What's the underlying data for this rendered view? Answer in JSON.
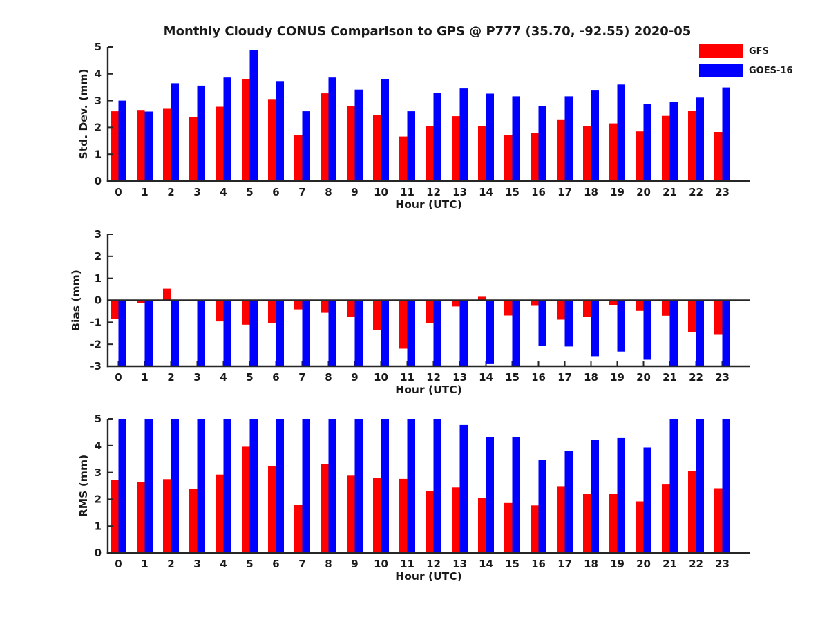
{
  "title": "Monthly Cloudy CONUS Comparison to GPS @ P777 (35.70, -92.55) 2020-05",
  "colors": {
    "gfs": "#ff0000",
    "goes16": "#0000ff",
    "axis": "#262626",
    "text": "#1a1a1a",
    "background": "#ffffff"
  },
  "legend": {
    "position": "top-right",
    "series": [
      {
        "label": "GFS",
        "color": "#ff0000"
      },
      {
        "label": "GOES-16",
        "color": "#0000ff"
      }
    ]
  },
  "chart_data": [
    {
      "type": "bar",
      "ylabel": "Std. Dev. (mm)",
      "xlabel": "Hour (UTC)",
      "ylim": [
        0,
        5
      ],
      "yticks": [
        0,
        1,
        2,
        3,
        4,
        5
      ],
      "grid": false,
      "categories": [
        "0",
        "1",
        "2",
        "3",
        "4",
        "5",
        "6",
        "7",
        "8",
        "9",
        "10",
        "11",
        "12",
        "13",
        "14",
        "15",
        "16",
        "17",
        "18",
        "19",
        "20",
        "21",
        "22",
        "23"
      ],
      "series": [
        {
          "name": "GFS",
          "color": "#ff0000",
          "values": [
            2.6,
            2.65,
            2.72,
            2.39,
            2.77,
            3.81,
            3.06,
            1.71,
            3.27,
            2.79,
            2.46,
            1.66,
            2.05,
            2.42,
            2.06,
            1.72,
            1.78,
            2.3,
            2.06,
            2.15,
            1.85,
            2.43,
            2.62,
            1.83
          ]
        },
        {
          "name": "GOES-16",
          "color": "#0000ff",
          "values": [
            3.0,
            2.59,
            3.65,
            3.56,
            3.86,
            4.89,
            3.73,
            2.6,
            3.86,
            3.41,
            3.79,
            2.6,
            3.29,
            3.45,
            3.26,
            3.16,
            2.81,
            3.16,
            3.4,
            3.6,
            2.88,
            2.94,
            3.11,
            3.49
          ]
        }
      ]
    },
    {
      "type": "bar",
      "ylabel": "Bias (mm)",
      "xlabel": "Hour (UTC)",
      "ylim": [
        -3,
        3
      ],
      "yticks": [
        -3,
        -2,
        -1,
        0,
        1,
        2,
        3
      ],
      "grid": false,
      "note": "GOES-16 bars with value -3.00 are clipped at the lower axis limit",
      "categories": [
        "0",
        "1",
        "2",
        "3",
        "4",
        "5",
        "6",
        "7",
        "8",
        "9",
        "10",
        "11",
        "12",
        "13",
        "14",
        "15",
        "16",
        "17",
        "18",
        "19",
        "20",
        "21",
        "22",
        "23"
      ],
      "series": [
        {
          "name": "GFS",
          "color": "#ff0000",
          "values": [
            -0.86,
            -0.13,
            0.53,
            0.0,
            -0.96,
            -1.11,
            -1.04,
            -0.41,
            -0.57,
            -0.75,
            -1.35,
            -2.2,
            -1.02,
            -0.28,
            0.16,
            -0.69,
            -0.25,
            -0.88,
            -0.74,
            -0.21,
            -0.48,
            -0.7,
            -1.45,
            -1.57
          ]
        },
        {
          "name": "GOES-16",
          "color": "#0000ff",
          "values": [
            -3.0,
            -3.0,
            -3.0,
            -3.0,
            -3.0,
            -3.0,
            -3.0,
            -3.0,
            -3.0,
            -3.0,
            -3.0,
            -3.0,
            -3.0,
            -3.0,
            -2.87,
            -2.97,
            -2.07,
            -2.1,
            -2.54,
            -2.33,
            -2.7,
            -3.0,
            -3.0,
            -3.0
          ]
        }
      ]
    },
    {
      "type": "bar",
      "ylabel": "RMS (mm)",
      "xlabel": "Hour (UTC)",
      "ylim": [
        0,
        5
      ],
      "yticks": [
        0,
        1,
        2,
        3,
        4,
        5
      ],
      "grid": false,
      "note": "GOES-16 bars with value 5.00 are clipped at the upper axis limit",
      "categories": [
        "0",
        "1",
        "2",
        "3",
        "4",
        "5",
        "6",
        "7",
        "8",
        "9",
        "10",
        "11",
        "12",
        "13",
        "14",
        "15",
        "16",
        "17",
        "18",
        "19",
        "20",
        "21",
        "22",
        "23"
      ],
      "series": [
        {
          "name": "GFS",
          "color": "#ff0000",
          "values": [
            2.72,
            2.65,
            2.75,
            2.37,
            2.92,
            3.96,
            3.24,
            1.78,
            3.32,
            2.88,
            2.81,
            2.76,
            2.32,
            2.44,
            2.06,
            1.86,
            1.77,
            2.49,
            2.19,
            2.19,
            1.92,
            2.55,
            3.04,
            2.41
          ]
        },
        {
          "name": "GOES-16",
          "color": "#0000ff",
          "values": [
            5.0,
            5.0,
            5.0,
            5.0,
            5.0,
            5.0,
            5.0,
            5.0,
            5.0,
            5.0,
            5.0,
            5.0,
            5.0,
            4.77,
            4.31,
            4.31,
            3.48,
            3.8,
            4.22,
            4.28,
            3.93,
            5.0,
            5.0,
            5.0
          ]
        }
      ]
    }
  ]
}
